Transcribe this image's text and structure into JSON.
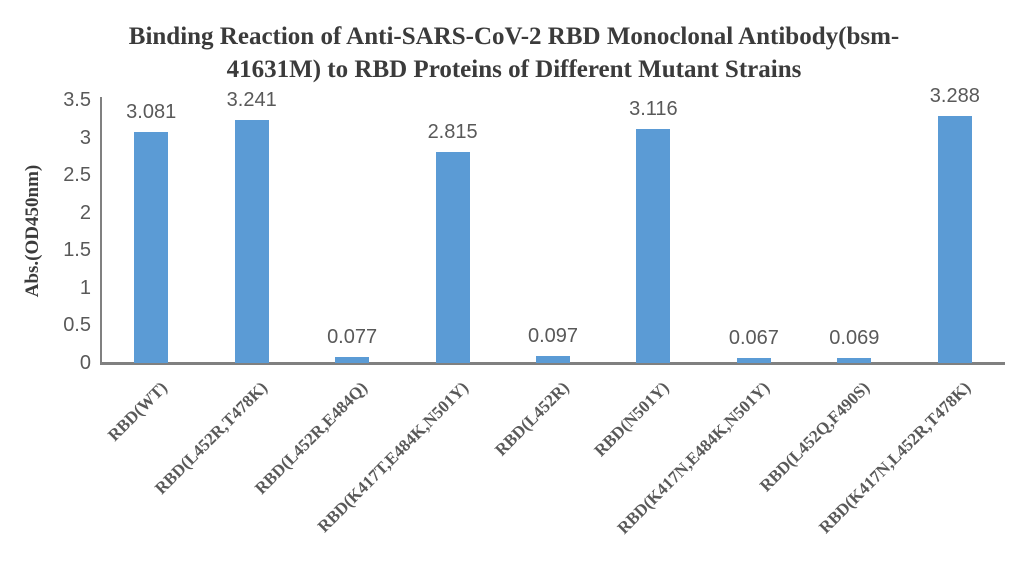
{
  "title": {
    "line1": "Binding Reaction of Anti-SARS-CoV-2 RBD Monoclonal Antibody(bsm-",
    "line2": "41631M) to RBD Proteins of Different Mutant Strains"
  },
  "chart_data": {
    "type": "bar",
    "title": "Binding Reaction of Anti-SARS-CoV-2 RBD Monoclonal Antibody(bsm-41631M) to RBD Proteins of Different Mutant Strains",
    "categories": [
      "RBD(WT)",
      "RBD(L452R,T478K)",
      "RBD(L452R,E484Q)",
      "RBD(K417T,E484K,N501Y)",
      "RBD(L452R)",
      "RBD(N501Y)",
      "RBD(K417N,E484K,N501Y)",
      "RBD(L452Q,F490S)",
      "RBD(K417N,L452R,T478K)"
    ],
    "values": [
      3.081,
      3.241,
      0.077,
      2.815,
      0.097,
      3.116,
      0.067,
      0.069,
      3.288
    ],
    "data_labels": [
      "3.081",
      "3.241",
      "0.077",
      "2.815",
      "0.097",
      "3.116",
      "0.067",
      "0.069",
      "3.288"
    ],
    "xlabel": "",
    "ylabel": "Abs.(OD450nm)",
    "ylim": [
      0,
      3.5
    ],
    "yticks": [
      0,
      0.5,
      1,
      1.5,
      2,
      2.5,
      3,
      3.5
    ],
    "ytick_labels": [
      "0",
      "0.5",
      "1",
      "1.5",
      "2",
      "2.5",
      "3",
      "3.5"
    ],
    "grid": false,
    "legend_position": "none",
    "bar_color": "#5B9BD5",
    "axis_color": "#808080",
    "tick_label_color": "#595959",
    "data_label_color": "#595959",
    "title_color": "#3b3b3b"
  }
}
